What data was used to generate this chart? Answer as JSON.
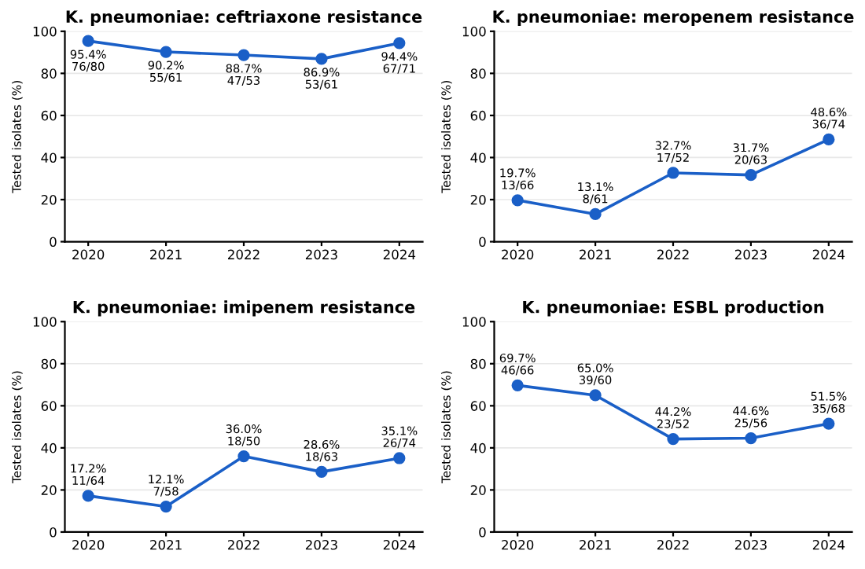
{
  "chart_data": [
    {
      "type": "line",
      "title": "K. pneumoniae: ceftriaxone resistance",
      "ylabel": "Tested isolates (%)",
      "categories": [
        "2020",
        "2021",
        "2022",
        "2023",
        "2024"
      ],
      "values": [
        95.4,
        90.2,
        88.7,
        86.9,
        94.4
      ],
      "value_labels": [
        "95.4%\n76/80",
        "90.2%\n55/61",
        "88.7%\n47/53",
        "86.9%\n53/61",
        "94.4%\n67/71"
      ],
      "color": "#1a5fc7",
      "ylim": [
        0,
        100
      ],
      "yticks": [
        0,
        20,
        40,
        60,
        80,
        100
      ],
      "grid": "y",
      "marker": "circle",
      "line_style": "solid"
    },
    {
      "type": "line",
      "title": "K. pneumoniae: meropenem resistance",
      "ylabel": "Tested isolates (%)",
      "categories": [
        "2020",
        "2021",
        "2022",
        "2023",
        "2024"
      ],
      "values": [
        19.7,
        13.1,
        32.7,
        31.7,
        48.6
      ],
      "value_labels": [
        "19.7%\n13/66",
        "13.1%\n8/61",
        "32.7%\n17/52",
        "31.7%\n20/63",
        "48.6%\n36/74"
      ],
      "color": "#1a5fc7",
      "ylim": [
        0,
        100
      ],
      "yticks": [
        0,
        20,
        40,
        60,
        80,
        100
      ],
      "grid": "y",
      "marker": "circle",
      "line_style": "solid"
    },
    {
      "type": "line",
      "title": "K. pneumoniae: imipenem resistance",
      "ylabel": "Tested isolates (%)",
      "categories": [
        "2020",
        "2021",
        "2022",
        "2023",
        "2024"
      ],
      "values": [
        17.2,
        12.1,
        36.0,
        28.6,
        35.1
      ],
      "value_labels": [
        "17.2%\n11/64",
        "12.1%\n7/58",
        "36.0%\n18/50",
        "28.6%\n18/63",
        "35.1%\n26/74"
      ],
      "color": "#1a5fc7",
      "ylim": [
        0,
        100
      ],
      "yticks": [
        0,
        20,
        40,
        60,
        80,
        100
      ],
      "grid": "y",
      "marker": "circle",
      "line_style": "solid"
    },
    {
      "type": "line",
      "title": "K. pneumoniae: ESBL production",
      "ylabel": "Tested isolates (%)",
      "categories": [
        "2020",
        "2021",
        "2022",
        "2023",
        "2024"
      ],
      "values": [
        69.7,
        65.0,
        44.2,
        44.6,
        51.5
      ],
      "value_labels": [
        "69.7%\n46/66",
        "65.0%\n39/60",
        "44.2%\n23/52",
        "44.6%\n25/56",
        "51.5%\n35/68"
      ],
      "color": "#1a5fc7",
      "ylim": [
        0,
        100
      ],
      "yticks": [
        0,
        20,
        40,
        60,
        80,
        100
      ],
      "grid": "y",
      "marker": "circle",
      "line_style": "solid"
    }
  ]
}
